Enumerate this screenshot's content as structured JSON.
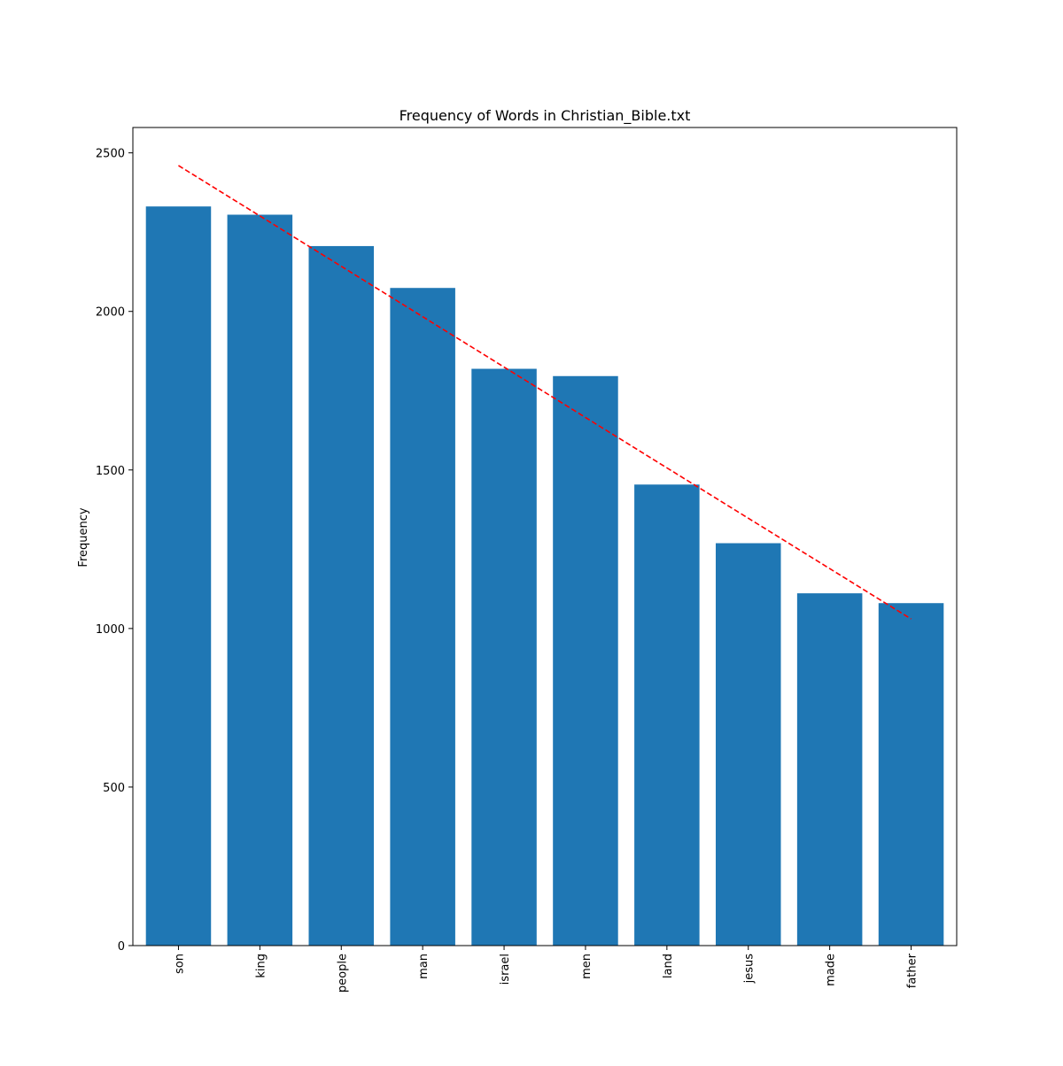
{
  "chart_data": {
    "type": "bar",
    "title": "Frequency of Words in Christian_Bible.txt",
    "xlabel": "",
    "ylabel": "Frequency",
    "categories": [
      "son",
      "king",
      "people",
      "man",
      "israel",
      "men",
      "land",
      "jesus",
      "made",
      "father"
    ],
    "values": [
      2331,
      2305,
      2206,
      2074,
      1819,
      1796,
      1454,
      1269,
      1111,
      1080
    ],
    "ylim": [
      0,
      2580
    ],
    "yticks": [
      0,
      500,
      1000,
      1500,
      2000,
      2500
    ],
    "grid": false,
    "bar_color": "#1f77b4",
    "trendline": {
      "style": "dashed",
      "color": "#ff0000",
      "start": 2460,
      "end": 1030
    }
  }
}
